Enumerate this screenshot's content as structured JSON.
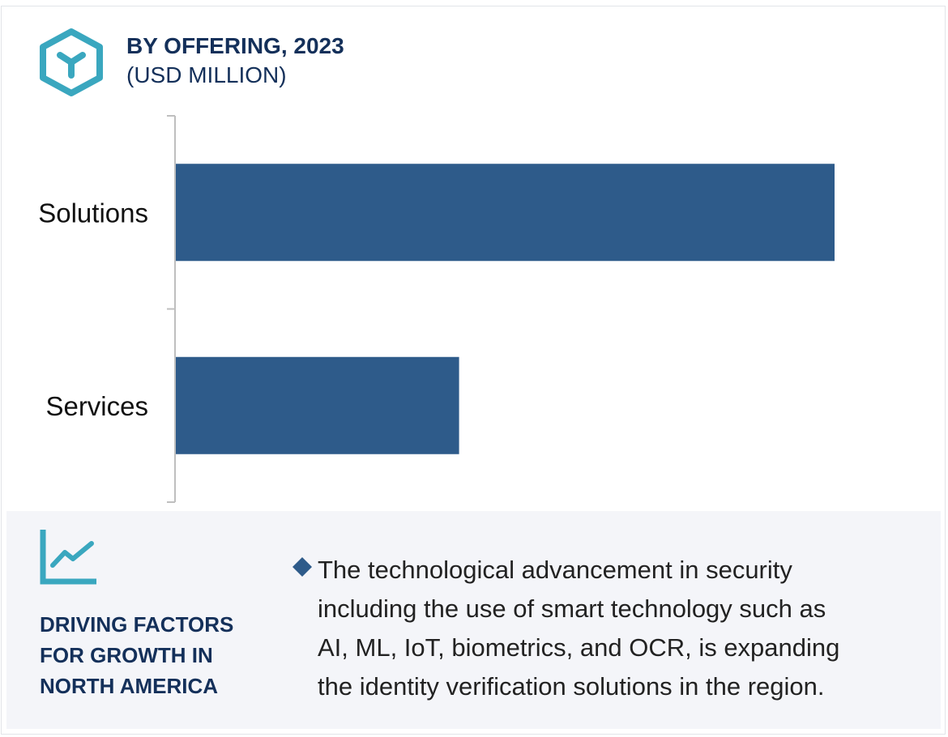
{
  "header": {
    "title": "BY OFFERING, 2023",
    "subtitle": "(USD MILLION)",
    "icon": "hexagon-y-icon"
  },
  "colors": {
    "bar": "#2e5b8a",
    "accent": "#3aa7bf",
    "title": "#14305a",
    "panel_bg": "#f4f5f9"
  },
  "chart_data": {
    "type": "bar",
    "orientation": "horizontal",
    "categories": [
      "Solutions",
      "Services"
    ],
    "values": [
      100,
      43
    ],
    "value_axis_labels": false,
    "xlim": [
      0,
      100
    ],
    "grid": false,
    "title": "BY OFFERING, 2023",
    "subtitle": "(USD MILLION)"
  },
  "drivers": {
    "icon": "trend-line-chart-icon",
    "title_lines": [
      "DRIVING FACTORS",
      "FOR GROWTH IN",
      "NORTH AMERICA"
    ],
    "bullet_icon": "diamond-bullet-icon",
    "bullet_lines": [
      "The technological advancement in security",
      "including the use of smart technology such as",
      "AI, ML, IoT, biometrics, and OCR, is expanding",
      "the identity verification solutions in the region."
    ]
  }
}
